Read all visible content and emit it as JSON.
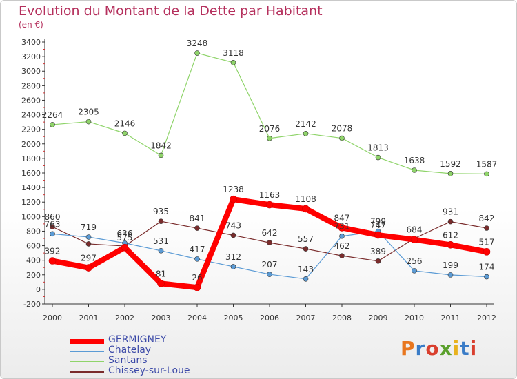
{
  "title": "Evolution du Montant de la Dette par Habitant",
  "subtitle": "(en €)",
  "logo": {
    "text": "Proxiti",
    "colors": [
      "#e8761e",
      "#3a7cc7",
      "#d93f2e",
      "#5aa02c",
      "#e8b21e",
      "#3a7cc7",
      "#d93f2e"
    ]
  },
  "chart_data": {
    "type": "line",
    "x": [
      "2000",
      "2001",
      "2002",
      "2003",
      "2004",
      "2005",
      "2006",
      "2007",
      "2008",
      "2009",
      "2010",
      "2011",
      "2012"
    ],
    "ylim": [
      -200,
      3400
    ],
    "yticks": [
      -200,
      0,
      200,
      400,
      600,
      800,
      1000,
      1200,
      1400,
      1600,
      1800,
      2000,
      2200,
      2400,
      2600,
      2800,
      3000,
      3200,
      3400
    ],
    "ytick_labels": [
      "-200",
      "0",
      "200",
      "400",
      "600",
      "800",
      "1000",
      "1200",
      "1400",
      "1600",
      "1800",
      "2000",
      "2200",
      "2400",
      "2600",
      "2800",
      "3000",
      "3200",
      "3400"
    ],
    "grid": false,
    "legend_position": "bottom-left",
    "series": [
      {
        "name": "GERMIGNEY",
        "color": "#ff0000",
        "width": 8,
        "marker": 5,
        "values": [
          392,
          297,
          575,
          81,
          26,
          1238,
          1163,
          1108,
          847,
          747,
          684,
          612,
          517
        ],
        "labels": [
          "392",
          "297",
          "575",
          "81",
          "26",
          "1238",
          "1163",
          "1108",
          "847",
          "747",
          "684",
          "612",
          "517"
        ]
      },
      {
        "name": "Chatelay",
        "color": "#5b9bd5",
        "width": 1.2,
        "marker": 3.5,
        "values": [
          763,
          719,
          636,
          531,
          417,
          312,
          207,
          143,
          731,
          799,
          256,
          199,
          174
        ],
        "labels": [
          "763",
          "719",
          "636",
          "531",
          "417",
          "312",
          "207",
          "143",
          "731",
          "799",
          "256",
          "199",
          "174"
        ]
      },
      {
        "name": "Santans",
        "color": "#8fd46a",
        "width": 1.2,
        "marker": 3.5,
        "values": [
          2264,
          2305,
          2146,
          1842,
          3248,
          3118,
          2076,
          2142,
          2078,
          1813,
          1638,
          1592,
          1587
        ],
        "labels": [
          "2264",
          "2305",
          "2146",
          "1842",
          "3248",
          "3118",
          "2076",
          "2142",
          "2078",
          "1813",
          "1638",
          "1592",
          "1587"
        ]
      },
      {
        "name": "Chissey-sur-Loue",
        "color": "#7a2c2c",
        "width": 1.2,
        "marker": 3.5,
        "values": [
          860,
          625,
          595,
          935,
          841,
          743,
          642,
          557,
          462,
          389,
          700,
          931,
          842
        ],
        "labels": [
          "860",
          "",
          "",
          "935",
          "841",
          "743",
          "642",
          "557",
          "462",
          "389",
          "",
          "931",
          "842"
        ]
      }
    ]
  }
}
